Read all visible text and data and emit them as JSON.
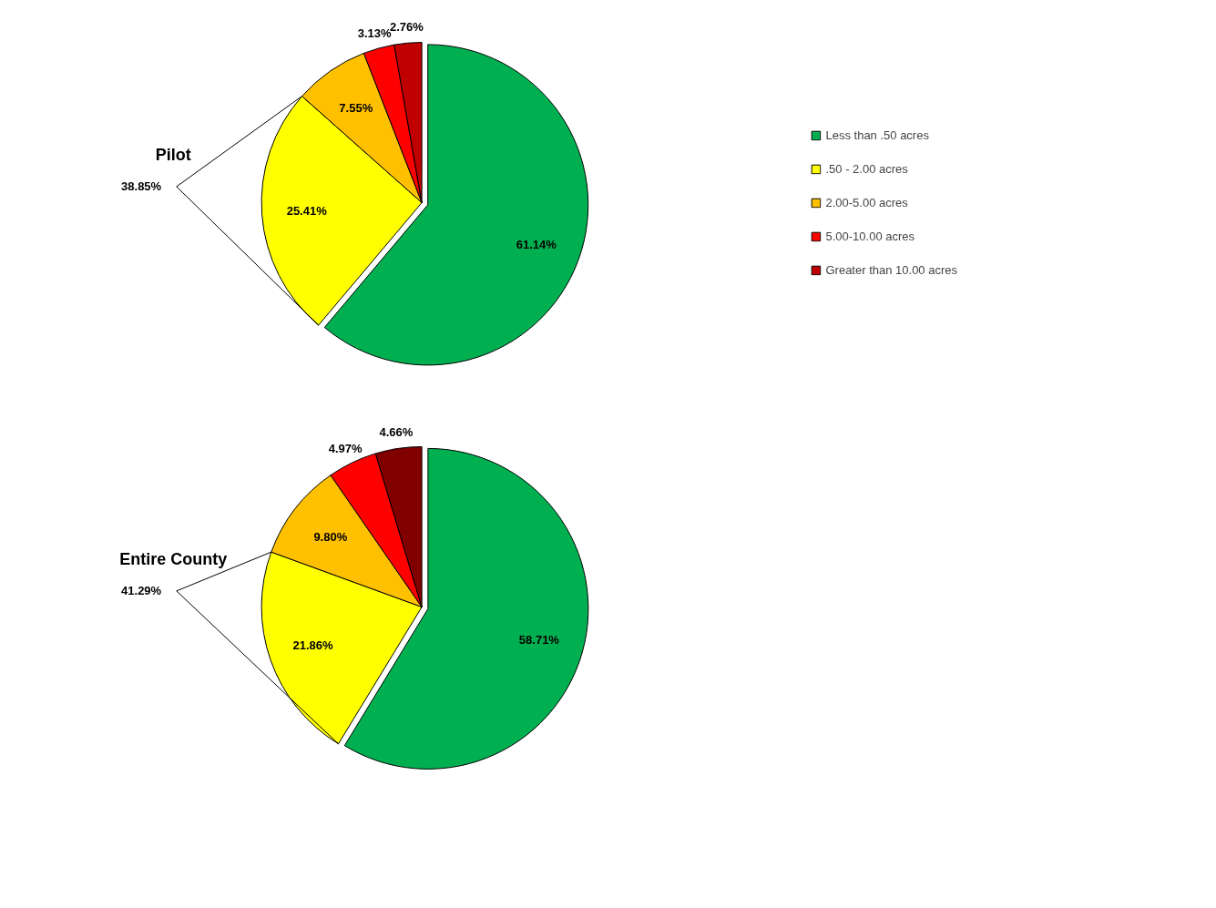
{
  "chart_data": [
    {
      "type": "pie",
      "title": "Pilot",
      "categories": [
        "Less than .50 acres",
        ".50 - 2.00 acres",
        "2.00-5.00 acres",
        "5.00-10.00 acres",
        "Greater than 10.00 acres"
      ],
      "values": [
        61.14,
        25.41,
        7.55,
        3.13,
        2.76
      ],
      "colors": [
        "#00b050",
        "#ffff00",
        "#ffc000",
        "#ff0000",
        "#c00000"
      ],
      "value_labels": [
        "61.14%",
        "25.41%",
        "7.55%",
        "3.13%",
        "2.76%"
      ],
      "legend": "right",
      "annotations": [
        "38.85%"
      ]
    },
    {
      "type": "pie",
      "title": "Entire County",
      "categories": [
        null,
        null,
        null,
        null,
        null
      ],
      "values": [
        58.71,
        21.86,
        9.8,
        4.97,
        4.66
      ],
      "colors": [
        "#00b050",
        "#ffff00",
        "#ffc000",
        "#ff0000",
        "#800000"
      ],
      "value_labels": [
        "58.71%",
        "21.86%",
        "9.80%",
        "4.97%",
        "4.66%"
      ],
      "annotations": [
        "41.29%"
      ]
    }
  ]
}
